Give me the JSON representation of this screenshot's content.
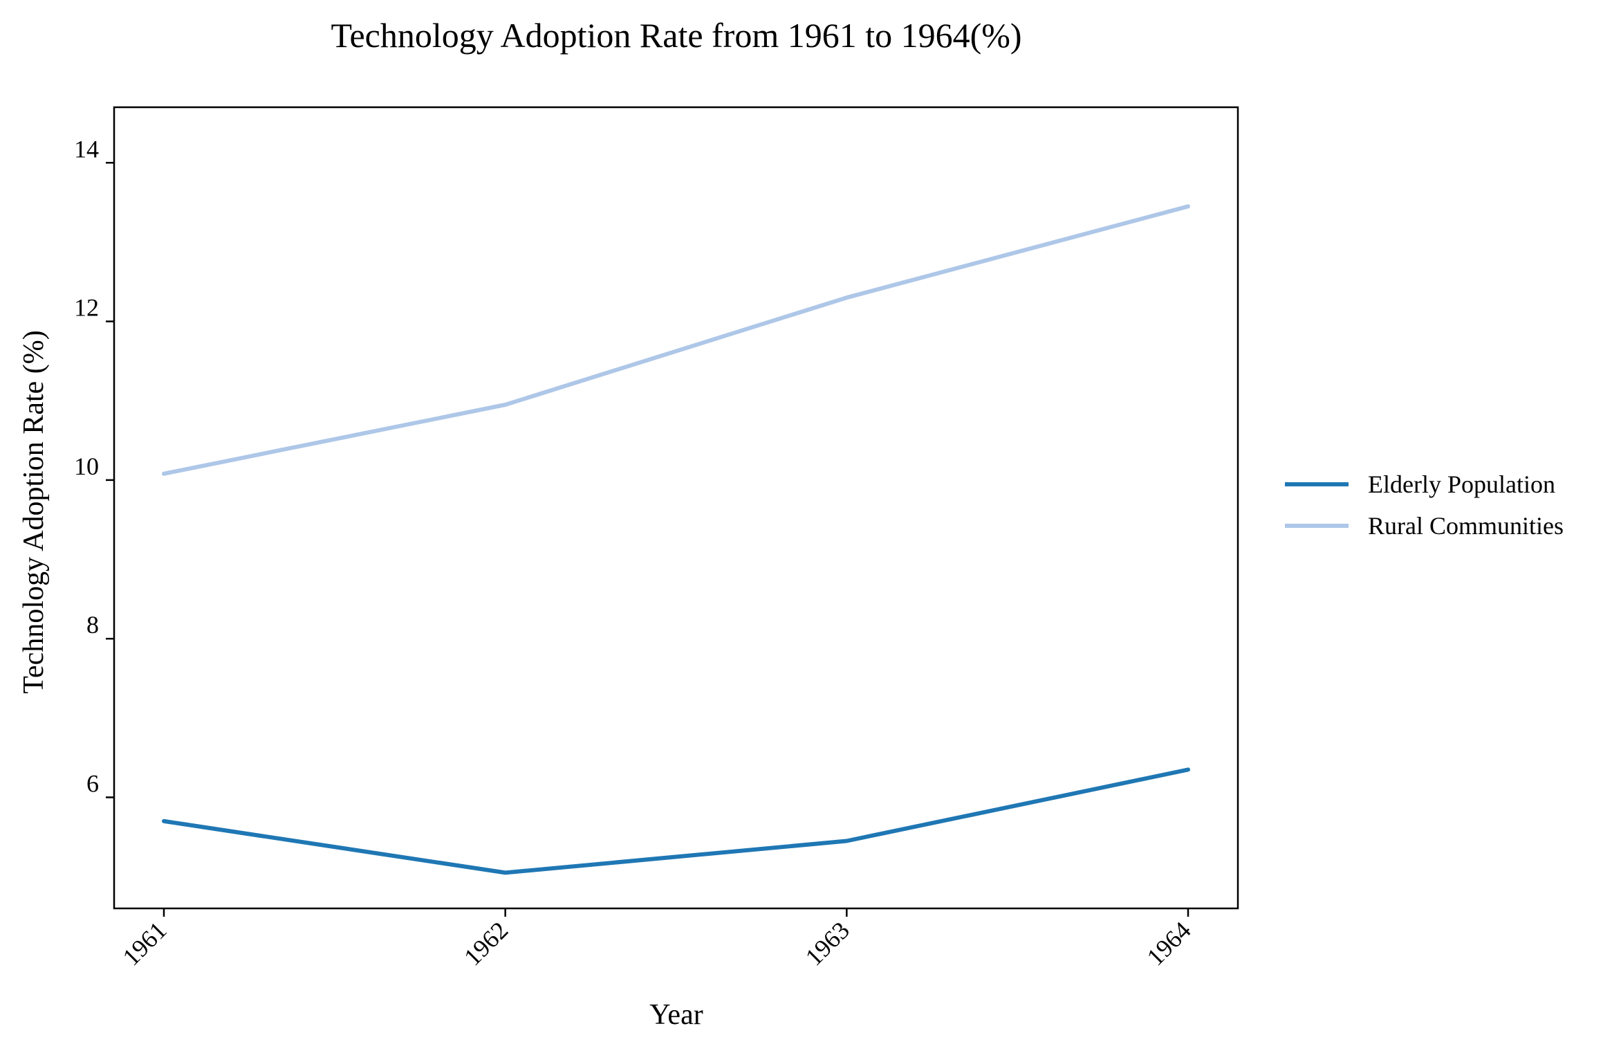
{
  "chart_data": {
    "type": "line",
    "title": "Technology Adoption Rate from 1961 to 1964(%)",
    "xlabel": "Year",
    "ylabel": "Technology Adoption Rate (%)",
    "x": [
      "1961",
      "1962",
      "1963",
      "1964"
    ],
    "yticks": [
      6,
      8,
      10,
      12,
      14
    ],
    "ylim": [
      4.6,
      14.7
    ],
    "grid": false,
    "legend_position": "right",
    "series": [
      {
        "name": "Elderly Population",
        "color": "#1f77b4",
        "values": [
          5.7,
          5.05,
          5.45,
          6.35
        ]
      },
      {
        "name": "Rural Communities",
        "color": "#aec7e8",
        "values": [
          10.08,
          10.95,
          12.3,
          13.45
        ]
      }
    ]
  }
}
